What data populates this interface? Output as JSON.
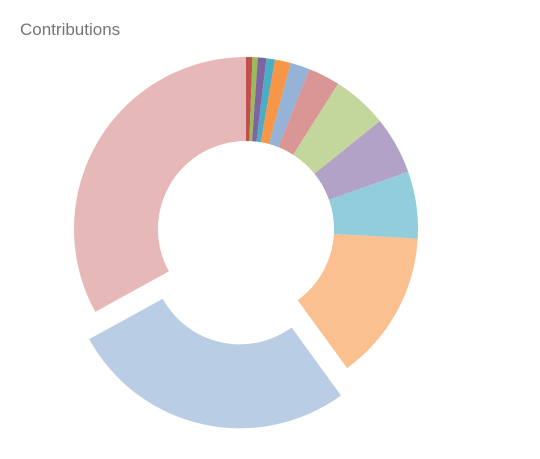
{
  "chart_data": {
    "type": "pie",
    "variant": "donut",
    "title": "Contributions",
    "legend": "none",
    "data_labels": false,
    "start_position": "top",
    "direction": "clockwise",
    "slices": [
      {
        "value": 0.6,
        "color": "#c0504d",
        "exploded": false
      },
      {
        "value": 0.5,
        "color": "#9bbb59",
        "exploded": false
      },
      {
        "value": 0.8,
        "color": "#8064a2",
        "exploded": false
      },
      {
        "value": 0.8,
        "color": "#4bacc6",
        "exploded": false
      },
      {
        "value": 1.5,
        "color": "#f79646",
        "exploded": false
      },
      {
        "value": 1.8,
        "color": "#95b3d7",
        "exploded": false
      },
      {
        "value": 3.0,
        "color": "#d99694",
        "exploded": false
      },
      {
        "value": 5.2,
        "color": "#c3d69b",
        "exploded": false
      },
      {
        "value": 5.4,
        "color": "#b2a2c7",
        "exploded": false
      },
      {
        "value": 6.3,
        "color": "#92cddc",
        "exploded": false
      },
      {
        "value": 14.1,
        "color": "#fac090",
        "exploded": false
      },
      {
        "value": 27.0,
        "color": "#b9cde5",
        "exploded": true
      },
      {
        "value": 33.0,
        "color": "#e6b9b8",
        "exploded": false
      }
    ]
  }
}
